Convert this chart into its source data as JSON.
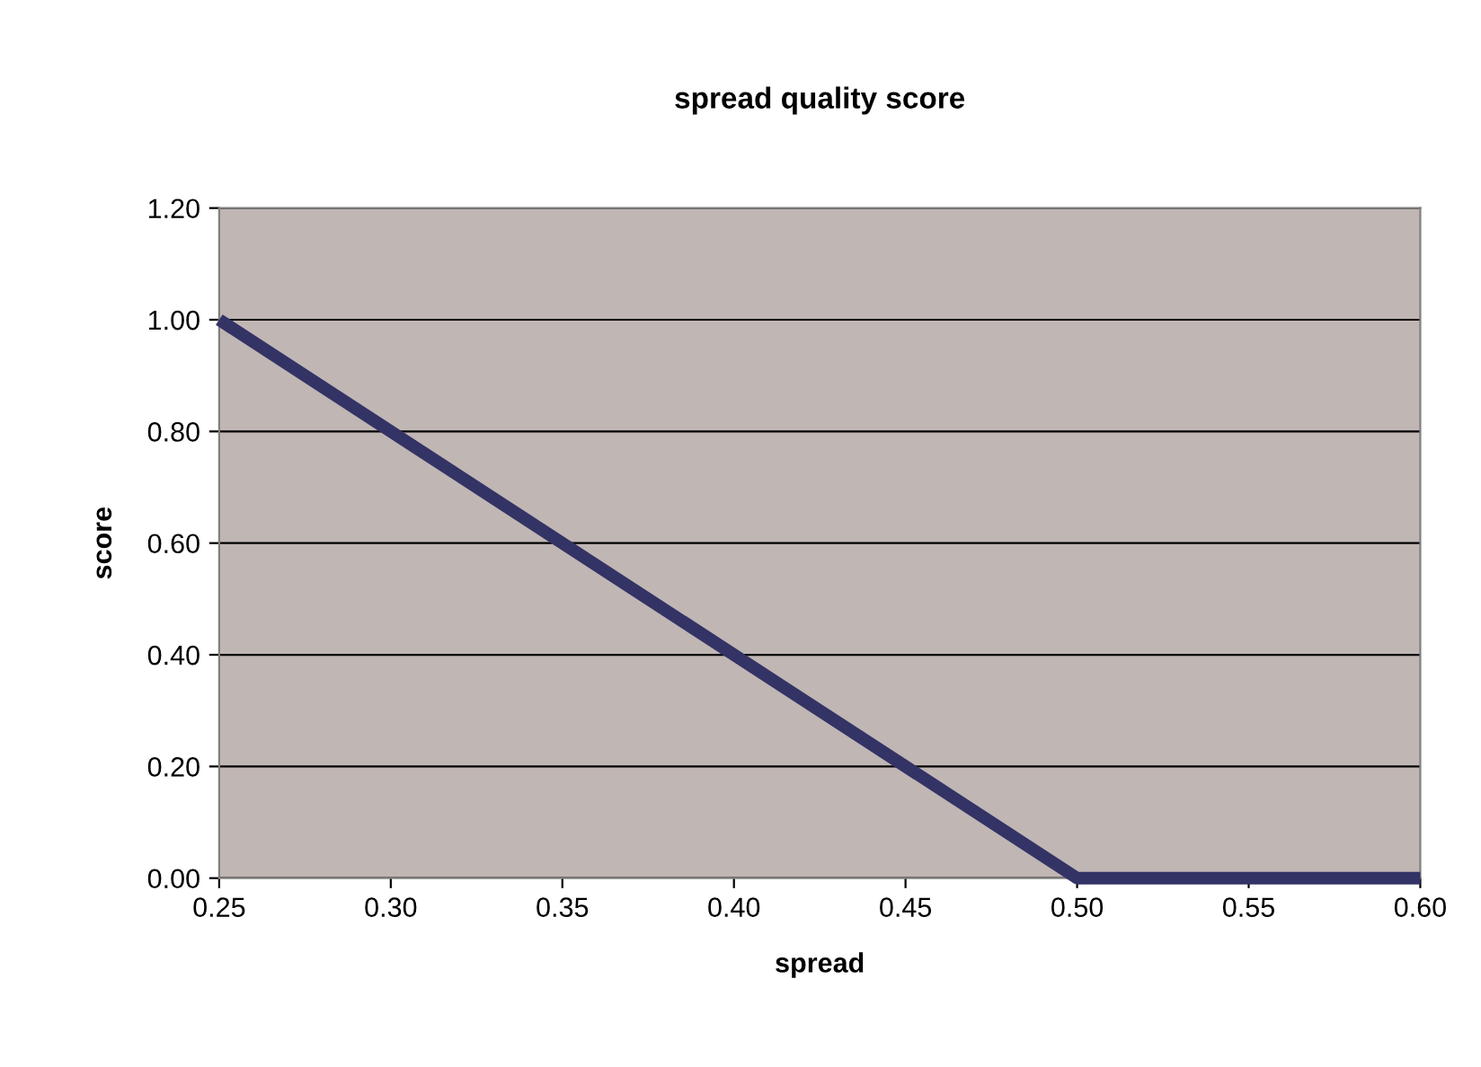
{
  "chart_data": {
    "type": "line",
    "title": "spread quality score",
    "xlabel": "spread",
    "ylabel": "score",
    "x": [
      0.25,
      0.5,
      0.6
    ],
    "series": [
      {
        "color": "#333366",
        "values": [
          1.0,
          0.0,
          0.0
        ]
      }
    ],
    "xlim": [
      0.25,
      0.6
    ],
    "xticks": [
      {
        "value": 0.25,
        "label": "0.25"
      },
      {
        "value": 0.3,
        "label": "0.30"
      },
      {
        "value": 0.35,
        "label": "0.35"
      },
      {
        "value": 0.4,
        "label": "0.40"
      },
      {
        "value": 0.45,
        "label": "0.45"
      },
      {
        "value": 0.5,
        "label": "0.50"
      },
      {
        "value": 0.55,
        "label": "0.55"
      },
      {
        "value": 0.6,
        "label": "0.60"
      }
    ],
    "ylim": [
      0,
      1.2
    ],
    "yticks": [
      {
        "value": 0,
        "label": "0.00"
      },
      {
        "value": 0.2,
        "label": "0.20"
      },
      {
        "value": 0.4,
        "label": "0.40"
      },
      {
        "value": 0.6,
        "label": "0.60"
      },
      {
        "value": 0.8,
        "label": "0.80"
      },
      {
        "value": 1.0,
        "label": "1.00"
      },
      {
        "value": 1.2,
        "label": "1.20"
      }
    ],
    "grid": "y",
    "legend": false,
    "marker": "none",
    "line_style": "solid"
  }
}
